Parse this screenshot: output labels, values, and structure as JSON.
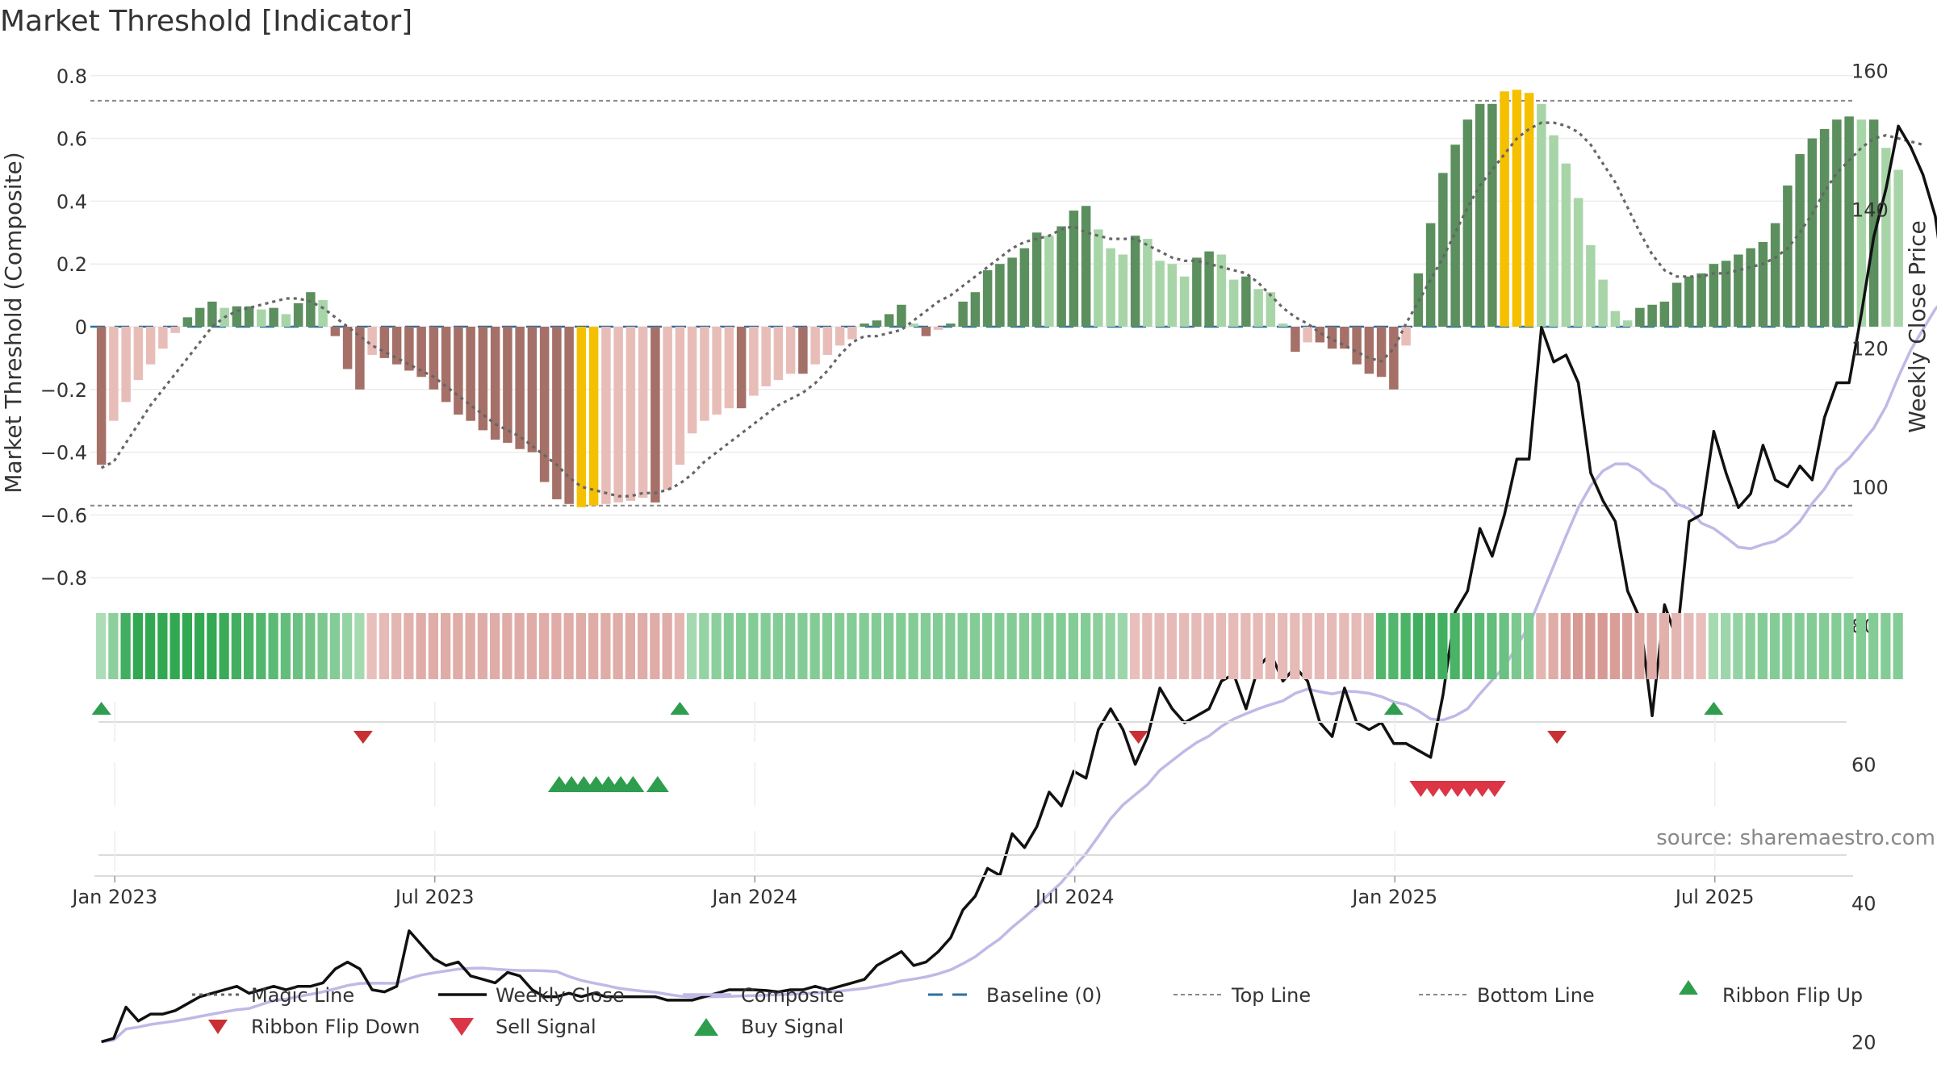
{
  "chart_data": {
    "type": "bar",
    "title": "Market Threshold [Indicator]",
    "ylabel": "Market Threshold (Composite)",
    "y2label": "Weekly Close Price",
    "source": "source: sharemaestro.com",
    "ylim": [
      -0.8,
      0.8
    ],
    "y2lim": [
      20,
      160
    ],
    "yticks": [
      "0.8",
      "0.6",
      "0.4",
      "0.2",
      "0",
      "−0.2",
      "−0.4",
      "−0.6",
      "−0.8"
    ],
    "yticks_values": [
      0.8,
      0.6,
      0.4,
      0.2,
      0,
      -0.2,
      -0.4,
      -0.6,
      -0.8
    ],
    "y2ticks": [
      "160",
      "140",
      "120",
      "100",
      "80",
      "60",
      "40",
      "20"
    ],
    "y2ticks_values": [
      160,
      140,
      120,
      100,
      80,
      60,
      40,
      20
    ],
    "xticks": [
      "Jan 2023",
      "Jul 2023",
      "Jan 2024",
      "Jul 2024",
      "Jan 2025",
      "Jul 2025"
    ],
    "xticks_week_index": [
      1,
      27,
      53,
      79,
      105,
      131
    ],
    "top_line": 0.72,
    "bottom_line": -0.57,
    "grid": true,
    "legend_position": "bottom",
    "colors": {
      "strong_up": "#5b8f5e",
      "light_up": "#a8d5a8",
      "strong_down": "#a57068",
      "light_down": "#e8bdb8",
      "extreme": "#f5c000",
      "magic": "#666666",
      "close": "#111111",
      "composite": "#c0b9e6",
      "baseline": "#2f6e9e",
      "threshold": "#888888",
      "flip_up": "#2e9e4e",
      "flip_down": "#c93036",
      "sell": "#dc3545",
      "buy": "#2e9e4e"
    },
    "series": [
      {
        "name": "Composite",
        "values": [
          -0.44,
          -0.3,
          -0.24,
          -0.17,
          -0.12,
          -0.07,
          -0.02,
          0.03,
          0.06,
          0.08,
          0.06,
          0.065,
          0.065,
          0.055,
          0.06,
          0.04,
          0.075,
          0.11,
          0.085,
          -0.03,
          -0.135,
          -0.2,
          -0.09,
          -0.1,
          -0.12,
          -0.14,
          -0.16,
          -0.2,
          -0.24,
          -0.28,
          -0.3,
          -0.33,
          -0.36,
          -0.37,
          -0.39,
          -0.4,
          -0.495,
          -0.55,
          -0.565,
          -0.575,
          -0.57,
          -0.565,
          -0.56,
          -0.555,
          -0.545,
          -0.56,
          -0.52,
          -0.44,
          -0.34,
          -0.3,
          -0.28,
          -0.26,
          -0.26,
          -0.22,
          -0.19,
          -0.17,
          -0.15,
          -0.15,
          -0.12,
          -0.09,
          -0.06,
          -0.04,
          0.01,
          0.02,
          0.04,
          0.07,
          0.01,
          -0.03,
          -0.01,
          0.01,
          0.08,
          0.11,
          0.18,
          0.2,
          0.22,
          0.25,
          0.3,
          0.29,
          0.32,
          0.37,
          0.385,
          0.31,
          0.25,
          0.23,
          0.29,
          0.28,
          0.21,
          0.2,
          0.16,
          0.22,
          0.24,
          0.23,
          0.15,
          0.16,
          0.12,
          0.11,
          0.01,
          -0.08,
          -0.05,
          -0.05,
          -0.07,
          -0.07,
          -0.12,
          -0.15,
          -0.16,
          -0.2,
          -0.06,
          0.17,
          0.33,
          0.49,
          0.58,
          0.66,
          0.71,
          0.71,
          0.75,
          0.755,
          0.745,
          0.71,
          0.61,
          0.52,
          0.41,
          0.26,
          0.15,
          0.05,
          0.02,
          0.06,
          0.07,
          0.08,
          0.14,
          0.16,
          0.17,
          0.2,
          0.21,
          0.23,
          0.25,
          0.27,
          0.33,
          0.45,
          0.55,
          0.6,
          0.63,
          0.66,
          0.67,
          0.66,
          0.66,
          0.57,
          0.5
        ]
      },
      {
        "name": "Magic Line",
        "values": [
          -0.45,
          -0.43,
          -0.37,
          -0.31,
          -0.25,
          -0.2,
          -0.15,
          -0.1,
          -0.05,
          0,
          0.03,
          0.05,
          0.06,
          0.07,
          0.08,
          0.09,
          0.09,
          0.08,
          0.06,
          0.03,
          0,
          -0.03,
          -0.06,
          -0.08,
          -0.1,
          -0.12,
          -0.14,
          -0.16,
          -0.19,
          -0.22,
          -0.25,
          -0.28,
          -0.31,
          -0.33,
          -0.35,
          -0.38,
          -0.41,
          -0.44,
          -0.48,
          -0.51,
          -0.52,
          -0.53,
          -0.54,
          -0.54,
          -0.53,
          -0.53,
          -0.52,
          -0.5,
          -0.47,
          -0.43,
          -0.4,
          -0.37,
          -0.34,
          -0.31,
          -0.28,
          -0.25,
          -0.23,
          -0.21,
          -0.18,
          -0.14,
          -0.09,
          -0.05,
          -0.03,
          -0.03,
          -0.02,
          -0.01,
          0.02,
          0.05,
          0.08,
          0.1,
          0.13,
          0.16,
          0.19,
          0.22,
          0.25,
          0.27,
          0.28,
          0.29,
          0.31,
          0.32,
          0.3,
          0.29,
          0.28,
          0.28,
          0.28,
          0.26,
          0.24,
          0.22,
          0.21,
          0.21,
          0.2,
          0.19,
          0.18,
          0.17,
          0.14,
          0.1,
          0.06,
          0.03,
          0.01,
          -0.02,
          -0.04,
          -0.06,
          -0.08,
          -0.1,
          -0.11,
          -0.07,
          0.01,
          0.08,
          0.15,
          0.22,
          0.3,
          0.38,
          0.45,
          0.5,
          0.55,
          0.6,
          0.63,
          0.65,
          0.65,
          0.64,
          0.62,
          0.58,
          0.52,
          0.46,
          0.38,
          0.3,
          0.23,
          0.18,
          0.16,
          0.16,
          0.16,
          0.17,
          0.17,
          0.18,
          0.19,
          0.2,
          0.22,
          0.25,
          0.3,
          0.36,
          0.43,
          0.49,
          0.53,
          0.57,
          0.6,
          0.61,
          0.6,
          0.59,
          0.58
        ]
      },
      {
        "name": "Weekly Close",
        "values": [
          20,
          20.5,
          25,
          23,
          24,
          24,
          24.5,
          25.5,
          26.5,
          27,
          27.5,
          28,
          27,
          27.5,
          28,
          27.5,
          28,
          28,
          28.5,
          30.5,
          31.5,
          30.5,
          27.5,
          27.2,
          28,
          36,
          34,
          32,
          31,
          31.5,
          29.5,
          29,
          28.5,
          30,
          29.5,
          27.5,
          26.5,
          26.5,
          27,
          26.5,
          27,
          26.5,
          26.5,
          26.5,
          26.5,
          26.5,
          26,
          26,
          26,
          26.5,
          27,
          27.5,
          27.5,
          27.5,
          27.4,
          27.2,
          27.5,
          27.5,
          28,
          27.5,
          28,
          28.5,
          29,
          31,
          32,
          33,
          31,
          31.5,
          33,
          35,
          39,
          41,
          45,
          44,
          50,
          48,
          51,
          56,
          54,
          59,
          58,
          65,
          68,
          65,
          60,
          64,
          71,
          68,
          66,
          67,
          68,
          72,
          73,
          68,
          74,
          76,
          72,
          74,
          72,
          66,
          64,
          71,
          66,
          65,
          66,
          63,
          63,
          62,
          61,
          70,
          82,
          85,
          94,
          90,
          96,
          104,
          104,
          123,
          118,
          119,
          115,
          102,
          98,
          95,
          85,
          81,
          67,
          83,
          78,
          95,
          96,
          108,
          102,
          97,
          99,
          106,
          101,
          100,
          103,
          101,
          110,
          115,
          115,
          125,
          136,
          143,
          152,
          149,
          145,
          139,
          126,
          123
        ]
      }
    ],
    "ribbon": {
      "values": [
        0.25,
        0.45,
        0.9,
        1,
        1,
        1,
        1,
        1,
        1,
        1,
        0.95,
        0.9,
        0.85,
        0.8,
        0.75,
        0.7,
        0.65,
        0.6,
        0.55,
        0.5,
        0.4,
        0.3,
        -0.3,
        -0.35,
        -0.4,
        -0.45,
        -0.5,
        -0.5,
        -0.5,
        -0.5,
        -0.5,
        -0.5,
        -0.5,
        -0.5,
        -0.5,
        -0.5,
        -0.5,
        -0.5,
        -0.5,
        -0.5,
        -0.5,
        -0.5,
        -0.5,
        -0.5,
        -0.5,
        -0.5,
        -0.5,
        -0.4,
        0.3,
        0.4,
        0.45,
        0.5,
        0.5,
        0.5,
        0.5,
        0.5,
        0.5,
        0.5,
        0.5,
        0.5,
        0.5,
        0.5,
        0.5,
        0.5,
        0.5,
        0.5,
        0.5,
        0.5,
        0.5,
        0.5,
        0.5,
        0.5,
        0.5,
        0.5,
        0.5,
        0.5,
        0.5,
        0.5,
        0.5,
        0.5,
        0.5,
        0.45,
        0.4,
        0.35,
        -0.3,
        -0.35,
        -0.35,
        -0.35,
        -0.35,
        -0.35,
        -0.35,
        -0.35,
        -0.35,
        -0.35,
        -0.35,
        -0.35,
        -0.35,
        -0.35,
        -0.35,
        -0.35,
        -0.35,
        -0.35,
        -0.35,
        -0.35,
        0.8,
        0.8,
        0.85,
        0.9,
        0.9,
        0.9,
        0.85,
        0.8,
        0.75,
        0.7,
        0.65,
        0.55,
        0.5,
        -0.4,
        -0.5,
        -0.6,
        -0.7,
        -0.7,
        -0.7,
        -0.65,
        -0.6,
        -0.55,
        -0.5,
        -0.45,
        -0.4,
        -0.35,
        -0.3,
        0.3,
        0.35,
        0.4,
        0.45,
        0.5,
        0.5,
        0.5,
        0.5,
        0.5,
        0.5,
        0.5,
        0.5,
        0.5,
        0.5,
        0.5,
        0.5
      ]
    },
    "ribbon_flip_up": [
      0,
      47,
      105,
      131
    ],
    "ribbon_flip_down": [
      21,
      84,
      118
    ],
    "buy_signals": [
      37,
      38,
      39,
      40,
      41,
      42,
      43,
      45
    ],
    "sell_signals": [
      107,
      108,
      109,
      110,
      111,
      112,
      113
    ]
  },
  "legend": [
    {
      "label": "Magic Line"
    },
    {
      "label": "Weekly Close"
    },
    {
      "label": "Composite"
    },
    {
      "label": "Baseline (0)"
    },
    {
      "label": "Top Line"
    },
    {
      "label": "Bottom Line"
    },
    {
      "label": "Ribbon Flip Up"
    },
    {
      "label": "Ribbon Flip Down"
    },
    {
      "label": "Sell Signal"
    },
    {
      "label": "Buy Signal"
    }
  ]
}
